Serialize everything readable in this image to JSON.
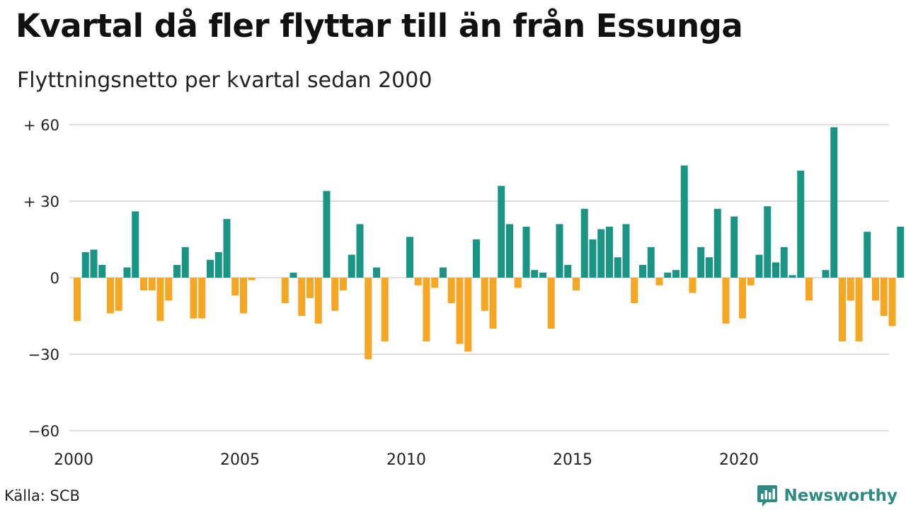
{
  "header": {
    "title": "Kvartal då fler flyttar till än från Essunga",
    "subtitle": "Flyttningsnetto per kvartal sedan 2000"
  },
  "footer": {
    "source": "Källa: SCB",
    "brand": "Newsworthy"
  },
  "colors": {
    "positive": "#1a9585",
    "negative": "#f5a623",
    "grid": "#dddddd",
    "brand": "#2e8a82"
  },
  "icons": {
    "brand_logo": "newsworthy-logo-icon"
  },
  "chart_data": {
    "type": "bar",
    "title": "Kvartal då fler flyttar till än från Essunga",
    "subtitle": "Flyttningsnetto per kvartal sedan 2000",
    "xlabel": "",
    "ylabel": "",
    "ylim": [
      -60,
      60
    ],
    "yticks": [
      60,
      30,
      0,
      -30,
      -60
    ],
    "ytick_labels": [
      "+ 60",
      "+ 30",
      "0",
      "−30",
      "−60"
    ],
    "xticks": [
      2000,
      2005,
      2010,
      2015,
      2020
    ],
    "xtick_labels": [
      "2000",
      "2005",
      "2010",
      "2015",
      "2020"
    ],
    "x_start_year": 2000,
    "grid": true,
    "categories": [
      "2000 K1",
      "2000 K2",
      "2000 K3",
      "2000 K4",
      "2001 K1",
      "2001 K2",
      "2001 K3",
      "2001 K4",
      "2002 K1",
      "2002 K2",
      "2002 K3",
      "2002 K4",
      "2003 K1",
      "2003 K2",
      "2003 K3",
      "2003 K4",
      "2004 K1",
      "2004 K2",
      "2004 K3",
      "2004 K4",
      "2005 K1",
      "2005 K2",
      "2005 K3",
      "2005 K4",
      "2006 K1",
      "2006 K2",
      "2006 K3",
      "2006 K4",
      "2007 K1",
      "2007 K2",
      "2007 K3",
      "2007 K4",
      "2008 K1",
      "2008 K2",
      "2008 K3",
      "2008 K4",
      "2009 K1",
      "2009 K2",
      "2009 K3",
      "2009 K4",
      "2010 K1",
      "2010 K2",
      "2010 K3",
      "2010 K4",
      "2011 K1",
      "2011 K2",
      "2011 K3",
      "2011 K4",
      "2012 K1",
      "2012 K2",
      "2012 K3",
      "2012 K4",
      "2013 K1",
      "2013 K2",
      "2013 K3",
      "2013 K4",
      "2014 K1",
      "2014 K2",
      "2014 K3",
      "2014 K4",
      "2015 K1",
      "2015 K2",
      "2015 K3",
      "2015 K4",
      "2016 K1",
      "2016 K2",
      "2016 K3",
      "2016 K4",
      "2017 K1",
      "2017 K2",
      "2017 K3",
      "2017 K4",
      "2018 K1",
      "2018 K2",
      "2018 K3",
      "2018 K4",
      "2019 K1",
      "2019 K2",
      "2019 K3",
      "2019 K4",
      "2020 K1",
      "2020 K2",
      "2020 K3",
      "2020 K4",
      "2021 K1",
      "2021 K2",
      "2021 K3",
      "2021 K4",
      "2022 K1",
      "2022 K2",
      "2022 K3",
      "2022 K4",
      "2023 K1",
      "2023 K2",
      "2023 K3",
      "2023 K4",
      "2024 K1",
      "2024 K2",
      "2024 K3",
      "2024 K4"
    ],
    "values": [
      -17,
      10,
      11,
      5,
      -14,
      -13,
      4,
      26,
      -5,
      -5,
      -17,
      -9,
      5,
      12,
      -16,
      -16,
      7,
      10,
      23,
      -7,
      -14,
      -1,
      0,
      0,
      0,
      -10,
      2,
      -15,
      -8,
      -18,
      34,
      -13,
      -5,
      9,
      21,
      -32,
      4,
      -25,
      0,
      0,
      16,
      -3,
      -25,
      -4,
      4,
      -10,
      -26,
      -29,
      15,
      -13,
      -20,
      36,
      21,
      -4,
      20,
      3,
      2,
      -20,
      21,
      5,
      -5,
      27,
      15,
      19,
      20,
      8,
      21,
      -10,
      5,
      12,
      -3,
      2,
      3,
      44,
      -6,
      12,
      8,
      27,
      -18,
      24,
      -16,
      -3,
      9,
      28,
      6,
      12,
      1,
      42,
      -9,
      0,
      3,
      59,
      -25,
      -9,
      -25,
      18,
      -9,
      -15,
      -19,
      20
    ]
  }
}
